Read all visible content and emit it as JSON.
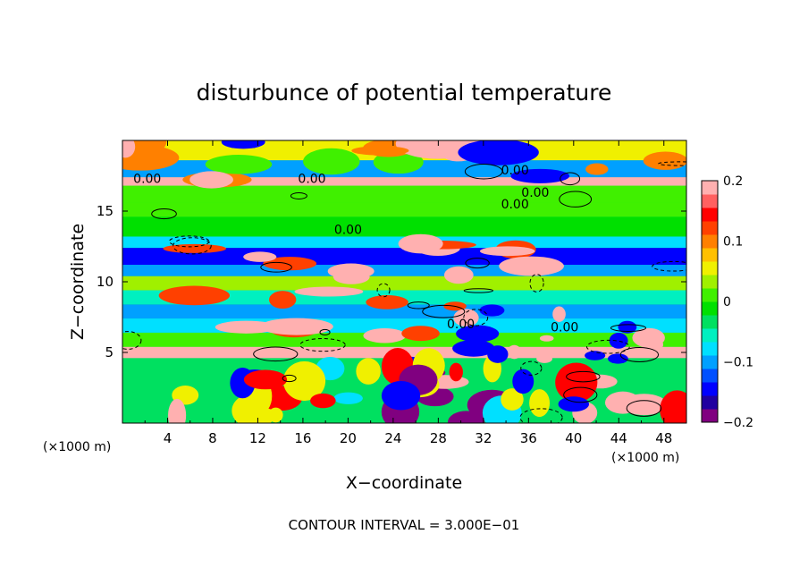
{
  "chart_data": {
    "type": "heatmap",
    "title": "disturbunce of potential temperature",
    "xlabel": "X−coordinate",
    "ylabel": "Z−coordinate",
    "x_unit": "(×1000 m)",
    "y_unit": "(×1000 m)",
    "footer": "CONTOUR INTERVAL = 3.000E−01",
    "xlim": [
      0,
      50
    ],
    "ylim": [
      0,
      20
    ],
    "x_ticks": [
      4,
      8,
      12,
      16,
      20,
      24,
      28,
      32,
      36,
      40,
      44,
      48
    ],
    "x_tick_labels": [
      "4",
      "8",
      "12",
      "16",
      "20",
      "24",
      "28",
      "32",
      "36",
      "40",
      "44",
      "48"
    ],
    "y_ticks": [
      5,
      10,
      15
    ],
    "y_tick_labels": [
      "5",
      "10",
      "15"
    ],
    "colorbar": {
      "range": [
        -0.2,
        0.2
      ],
      "tick_values": [
        0.2,
        0.1,
        0,
        -0.1,
        -0.2
      ],
      "tick_labels": [
        "0.2",
        "0.1",
        "0",
        "−0.1",
        "−0.2"
      ],
      "colors": [
        "#800080",
        "#2000a0",
        "#0000ff",
        "#0050ff",
        "#00a0ff",
        "#00e0ff",
        "#00f0c0",
        "#00e060",
        "#00e000",
        "#40f000",
        "#a0f000",
        "#f0f000",
        "#ffc000",
        "#ff8000",
        "#ff4000",
        "#ff0000",
        "#ff6060",
        "#ffb0b0"
      ]
    },
    "contour_labels": [
      {
        "text": "0.00",
        "x": 2.2,
        "z": 17.0
      },
      {
        "text": "0.00",
        "x": 16.8,
        "z": 17.0
      },
      {
        "text": "0.00",
        "x": 34.8,
        "z": 17.6
      },
      {
        "text": "0.00",
        "x": 36.6,
        "z": 16.0
      },
      {
        "text": "0.00",
        "x": 34.8,
        "z": 15.2
      },
      {
        "text": "0.00",
        "x": 20.0,
        "z": 13.4
      },
      {
        "text": "0.00",
        "x": 30.0,
        "z": 6.7
      },
      {
        "text": "0.00",
        "x": 39.2,
        "z": 6.5
      }
    ]
  }
}
